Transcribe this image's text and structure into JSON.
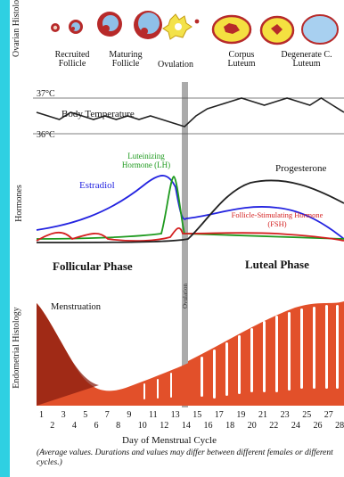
{
  "section_labels": {
    "ovarian": "Ovarian Histology",
    "hormones": "Hormones",
    "endometrial": "Endometrial Histology"
  },
  "stages": [
    {
      "label": "Recruited Follicle"
    },
    {
      "label": "Maturing Follicle"
    },
    {
      "label": "Ovulation"
    },
    {
      "label": "Corpus Luteum"
    },
    {
      "label": "Degenerate C. Luteum"
    }
  ],
  "temperature": {
    "label": "Body Temperature",
    "ticks": [
      "37°C",
      "36°C"
    ],
    "values": [
      36.6,
      36.5,
      36.4,
      36.6,
      36.5,
      36.4,
      36.5,
      36.4,
      36.5,
      36.4,
      36.5,
      36.4,
      36.3,
      36.2,
      36.5,
      36.7,
      36.8,
      36.9,
      37.0,
      36.9,
      36.8,
      36.9,
      37.0,
      36.9,
      36.8,
      37.0,
      36.8,
      36.6
    ]
  },
  "hormones": {
    "lh_label": "Luteinizing Hormone (LH)",
    "estradiol_label": "Estradiol",
    "progesterone_label": "Progesterone",
    "fsh_label": "Follicle-Stimulating Hormone (FSH)",
    "ovulation_label": "Ovulation"
  },
  "phases": {
    "follicular": "Follicular Phase",
    "luteal": "Luteal Phase"
  },
  "menstruation_label": "Menstruation",
  "x_axis": {
    "odd_days": [
      "1",
      "3",
      "5",
      "7",
      "9",
      "11",
      "13",
      "15",
      "17",
      "19",
      "21",
      "23",
      "25",
      "27"
    ],
    "even_days": [
      "2",
      "4",
      "6",
      "8",
      "10",
      "12",
      "14",
      "16",
      "18",
      "20",
      "22",
      "24",
      "26",
      "28"
    ],
    "title": "Day of Menstrual Cycle"
  },
  "footnote": "(Average values. Durations and values may differ between different females or different cycles.)",
  "colors": {
    "estradiol": "#2323e0",
    "lh": "#1e9a1e",
    "fsh": "#d42020",
    "progesterone": "#222222",
    "endometrium": "#e2502a",
    "endometrium_dark": "#8a1e10",
    "ovulation_band": "#9c9c9c",
    "side_stripe": "#2fd0e2"
  }
}
